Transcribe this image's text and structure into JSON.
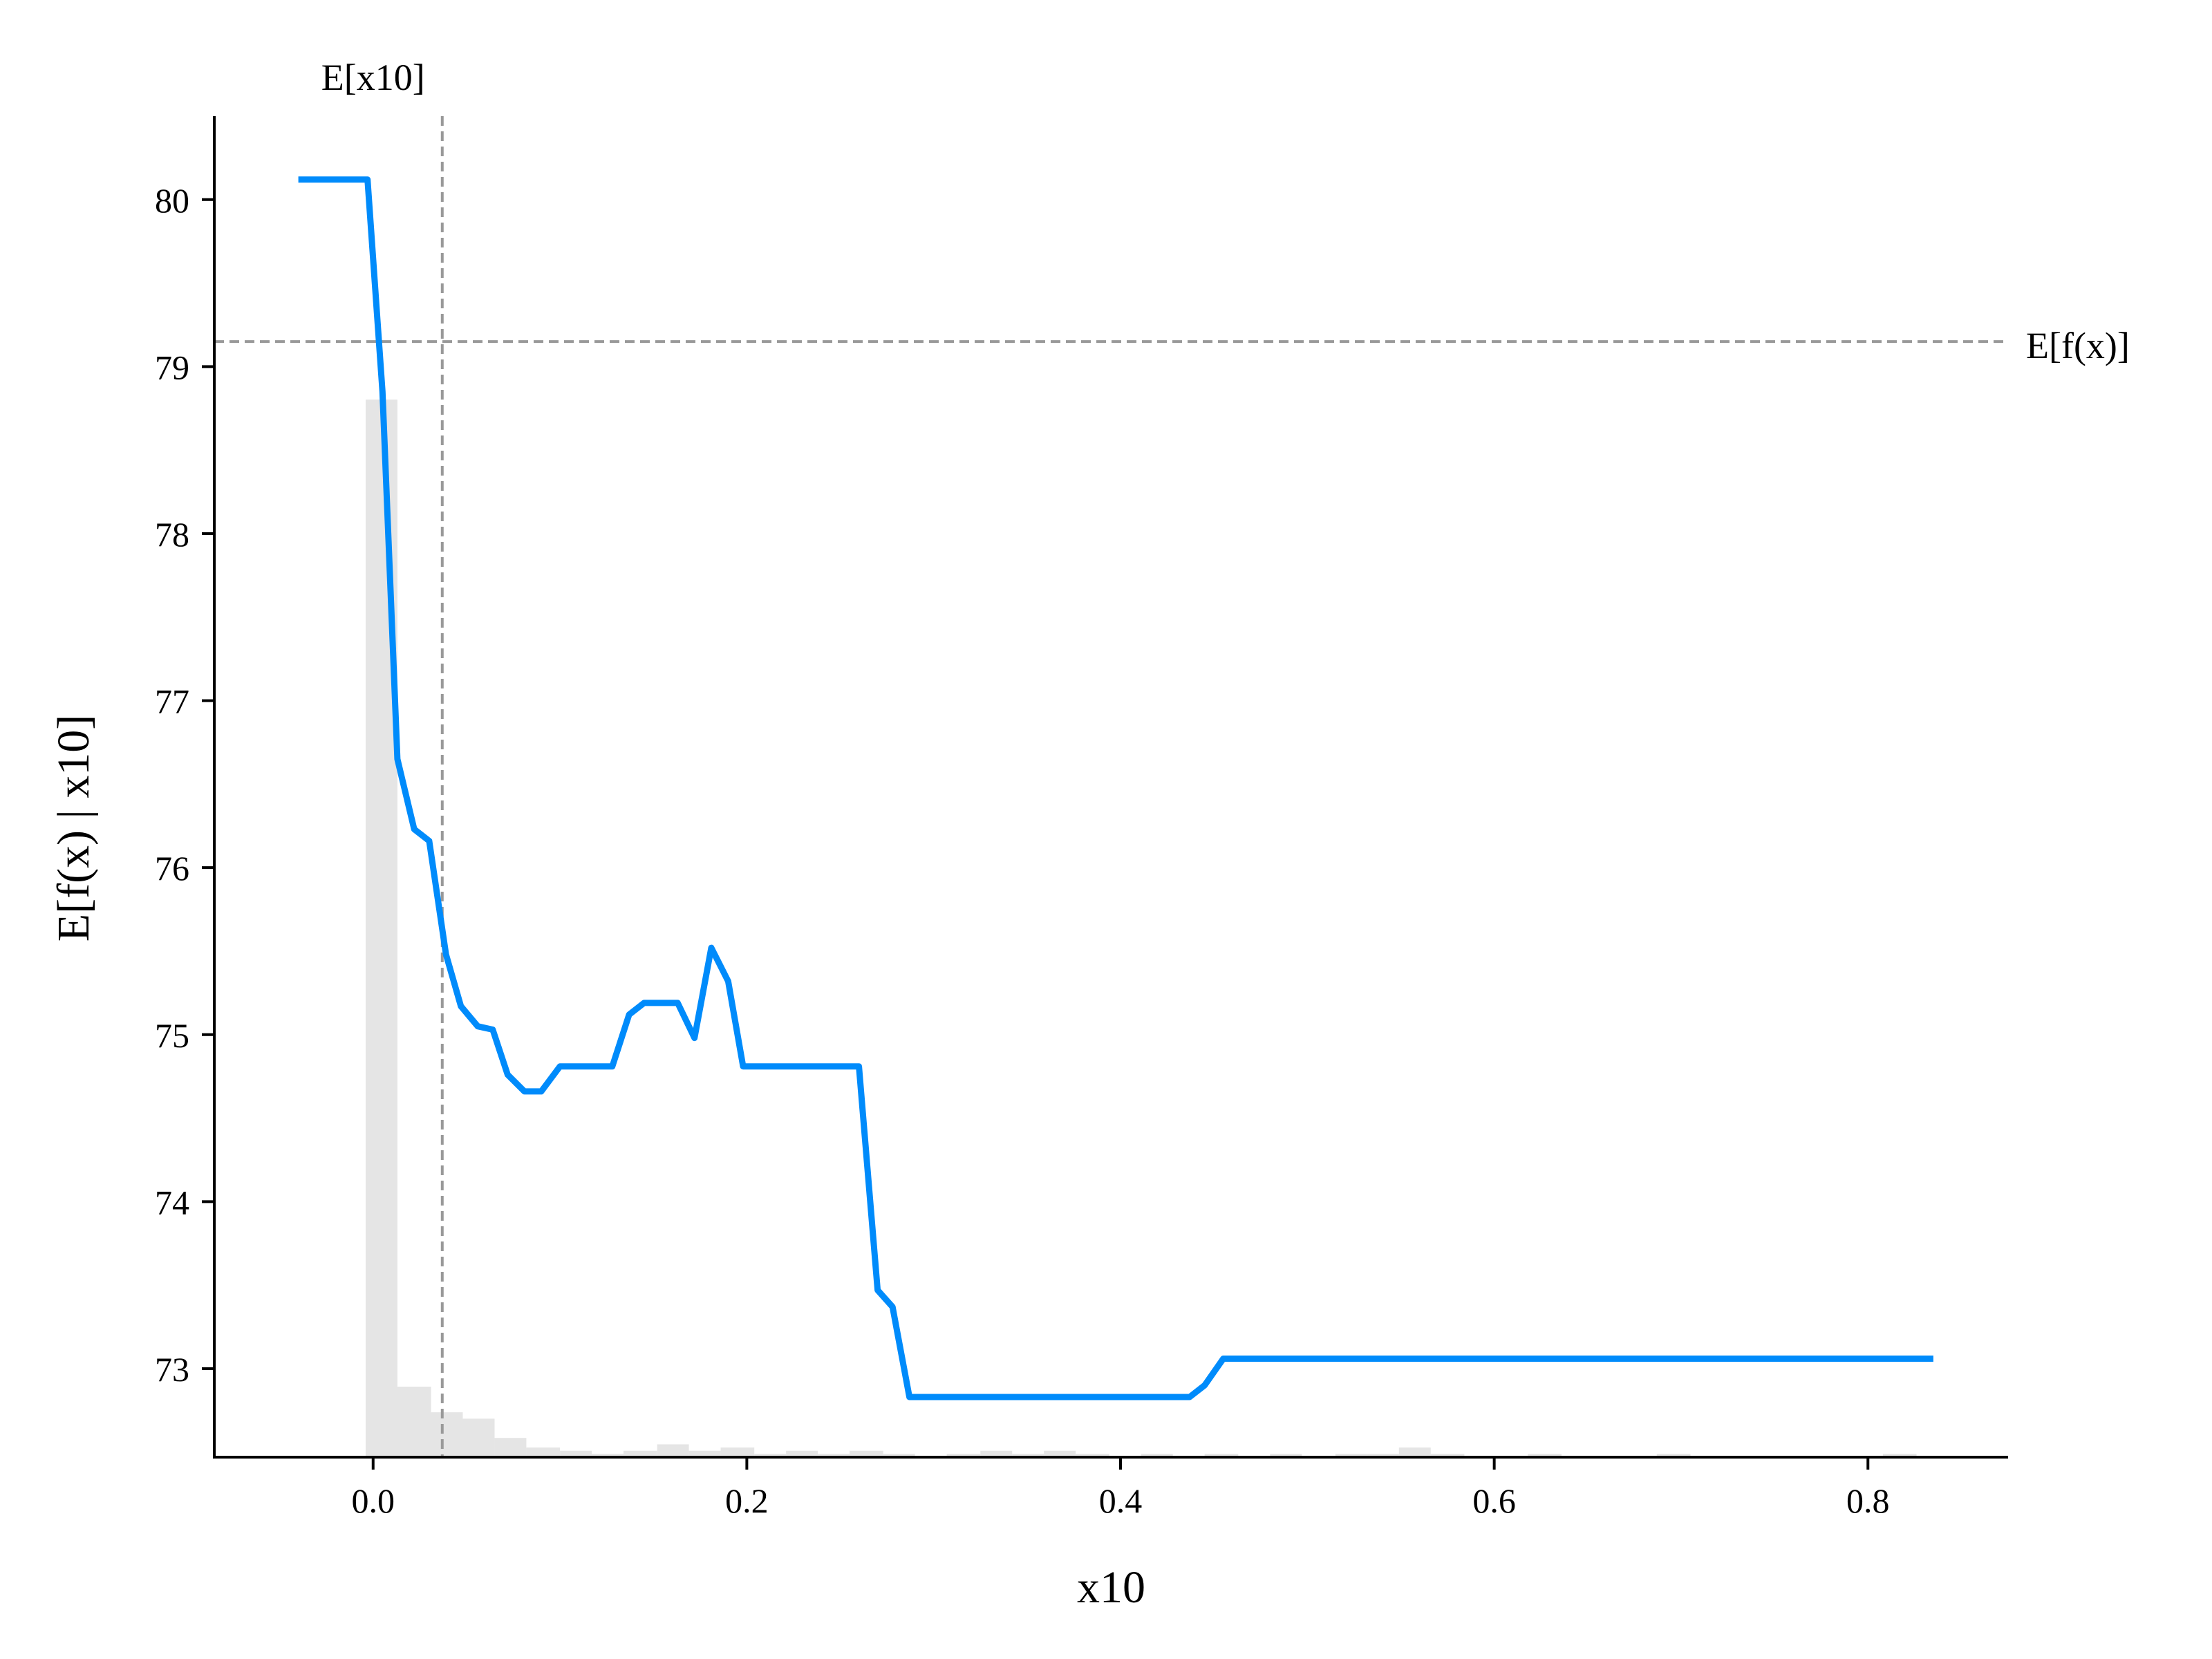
{
  "chart_data": {
    "type": "line",
    "xlabel": "x10",
    "ylabel": "E[f(x) | x10]",
    "xlim": [
      -0.085,
      0.875
    ],
    "ylim": [
      72.47,
      80.5
    ],
    "x_ticks": [
      0.0,
      0.2,
      0.4,
      0.6,
      0.8
    ],
    "x_tick_labels": [
      "0.0",
      "0.2",
      "0.4",
      "0.6",
      "0.8"
    ],
    "y_ticks": [
      73,
      74,
      75,
      76,
      77,
      78,
      79,
      80
    ],
    "y_tick_labels": [
      "73",
      "74",
      "75",
      "76",
      "77",
      "78",
      "79",
      "80"
    ],
    "grid": false,
    "spines": "left-bottom",
    "series": [
      {
        "color": "#008bfb",
        "x": [
          -0.04,
          -0.003,
          0.005,
          0.013,
          0.022,
          0.03,
          0.039,
          0.047,
          0.056,
          0.064,
          0.072,
          0.081,
          0.09,
          0.1,
          0.128,
          0.137,
          0.145,
          0.163,
          0.172,
          0.181,
          0.19,
          0.198,
          0.26,
          0.27,
          0.278,
          0.287,
          0.35,
          0.4,
          0.437,
          0.445,
          0.455,
          0.6,
          0.835
        ],
        "y": [
          80.12,
          80.12,
          78.85,
          76.65,
          76.23,
          76.16,
          75.48,
          75.17,
          75.05,
          75.03,
          74.76,
          74.66,
          74.66,
          74.81,
          74.81,
          75.12,
          75.19,
          75.19,
          74.98,
          75.52,
          75.32,
          74.81,
          74.81,
          73.47,
          73.37,
          72.83,
          72.83,
          72.83,
          72.83,
          72.9,
          73.06,
          73.06,
          73.06
        ]
      }
    ],
    "reference_lines": {
      "horizontal": {
        "value": 79.15,
        "label": "E[f(x)]",
        "color": "#999999"
      },
      "vertical": {
        "value": 0.037,
        "label": "E[x10]",
        "color": "#999999"
      }
    },
    "histogram": {
      "color": "#e5e5e5",
      "bin_edges": [
        -0.004,
        0.013,
        0.031,
        0.048,
        0.065,
        0.082,
        0.1,
        0.117,
        0.134,
        0.152,
        0.169,
        0.186,
        0.204,
        0.221,
        0.238,
        0.255,
        0.273,
        0.29,
        0.307,
        0.325,
        0.342,
        0.359,
        0.376,
        0.394,
        0.411,
        0.428,
        0.445,
        0.463,
        0.48,
        0.497,
        0.515,
        0.532,
        0.549,
        0.566,
        0.584,
        0.601,
        0.618,
        0.636,
        0.653,
        0.67,
        0.687,
        0.705,
        0.722,
        0.739,
        0.757,
        0.774,
        0.791,
        0.808,
        0.826
      ],
      "counts": [
        330,
        22,
        14,
        12,
        6,
        3,
        2,
        1,
        2,
        4,
        2,
        3,
        1,
        2,
        1,
        2,
        1,
        0,
        1,
        2,
        1,
        2,
        1,
        0,
        1,
        0,
        1,
        0,
        1,
        0,
        1,
        1,
        3,
        1,
        0,
        0,
        1,
        0,
        0,
        0,
        1,
        0,
        0,
        0,
        0,
        0,
        0,
        1
      ]
    }
  }
}
